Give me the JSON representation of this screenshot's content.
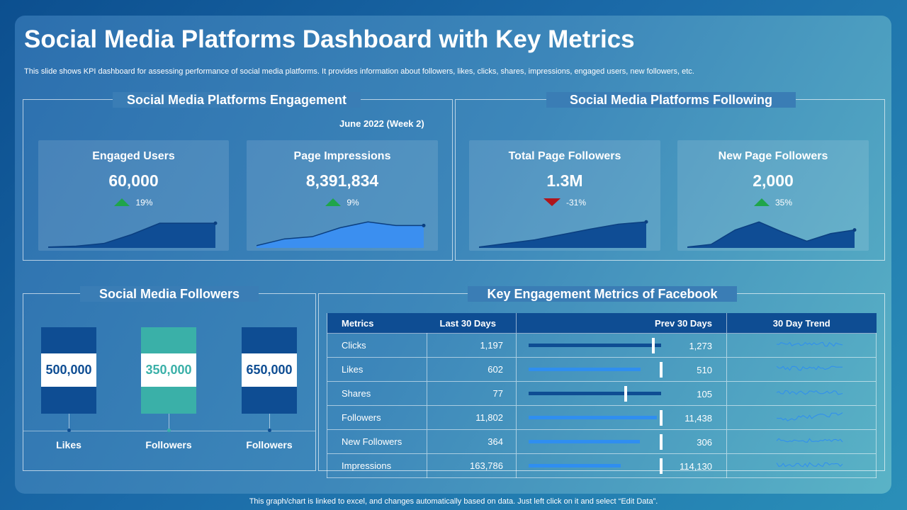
{
  "header": {
    "title": "Social Media Platforms Dashboard with Key Metrics",
    "subtitle": "This slide shows KPI dashboard for assessing performance of social media platforms. It provides information about followers, likes, clicks, shares, impressions, engaged users, new followers, etc."
  },
  "engagement": {
    "title": "Social Media Platforms Engagement",
    "date_label": "June 2022 (Week 2)",
    "cards": [
      {
        "label": "Engaged Users",
        "value": "60,000",
        "change": "19%",
        "direction": "up",
        "spark": [
          2,
          4,
          10,
          30,
          55,
          55,
          55
        ],
        "style": "area-dark"
      },
      {
        "label": "Page Impressions",
        "value": "8,391,834",
        "change": "9%",
        "direction": "up",
        "spark": [
          5,
          20,
          25,
          45,
          58,
          50,
          50
        ],
        "style": "area-light"
      }
    ]
  },
  "following": {
    "title": "Social Media Platforms Following",
    "cards": [
      {
        "label": "Total Page Followers",
        "value": "1.3M",
        "change": "-31%",
        "direction": "down",
        "spark": [
          2,
          10,
          18,
          30,
          42,
          53,
          58
        ],
        "style": "area-dark"
      },
      {
        "label": "New Page Followers",
        "value": "2,000",
        "change": "35%",
        "direction": "up",
        "spark": [
          2,
          8,
          40,
          58,
          35,
          15,
          32,
          40
        ],
        "style": "area-dark"
      }
    ]
  },
  "followers": {
    "title": "Social Media Followers",
    "bars": [
      {
        "value": "500,000",
        "label": "Likes",
        "color": "#0e4d93"
      },
      {
        "value": "350,000",
        "label": "Followers",
        "color": "#3ab0a8"
      },
      {
        "value": "650,000",
        "label": "Followers",
        "color": "#0e4d93"
      }
    ]
  },
  "facebook": {
    "title": "Key Engagement Metrics of Facebook",
    "headers": {
      "metrics": "Metrics",
      "last30": "Last 30 Days",
      "prev30": "Prev 30 Days",
      "trend": "30 Day Trend"
    },
    "rows": [
      {
        "metric": "Clicks",
        "last30": "1,197",
        "prev30": "1,273",
        "last_num": 1197,
        "prev_num": 1273,
        "bar_color": "#0e4d93"
      },
      {
        "metric": "Likes",
        "last30": "602",
        "prev30": "510",
        "last_num": 602,
        "prev_num": 510,
        "bar_color": "#2f8ef0"
      },
      {
        "metric": "Shares",
        "last30": "77",
        "prev30": "105",
        "last_num": 77,
        "prev_num": 105,
        "bar_color": "#0e4d93"
      },
      {
        "metric": "Followers",
        "last30": "11,802",
        "prev30": "11,438",
        "last_num": 11802,
        "prev_num": 11438,
        "bar_color": "#2f8ef0"
      },
      {
        "metric": "New Followers",
        "last30": "364",
        "prev30": "306",
        "last_num": 364,
        "prev_num": 306,
        "bar_color": "#2f8ef0"
      },
      {
        "metric": "Impressions",
        "last30": "163,786",
        "prev30": "114,130",
        "last_num": 163786,
        "prev_num": 114130,
        "bar_color": "#2f8ef0"
      }
    ]
  },
  "chart_data": {
    "type": "bar",
    "title": "Social Media Followers",
    "categories": [
      "Likes",
      "Followers",
      "Followers"
    ],
    "values": [
      500000,
      350000,
      650000
    ]
  },
  "footer": "This graph/chart is linked to excel, and changes automatically based on data. Just left click on it and select “Edit Data”."
}
